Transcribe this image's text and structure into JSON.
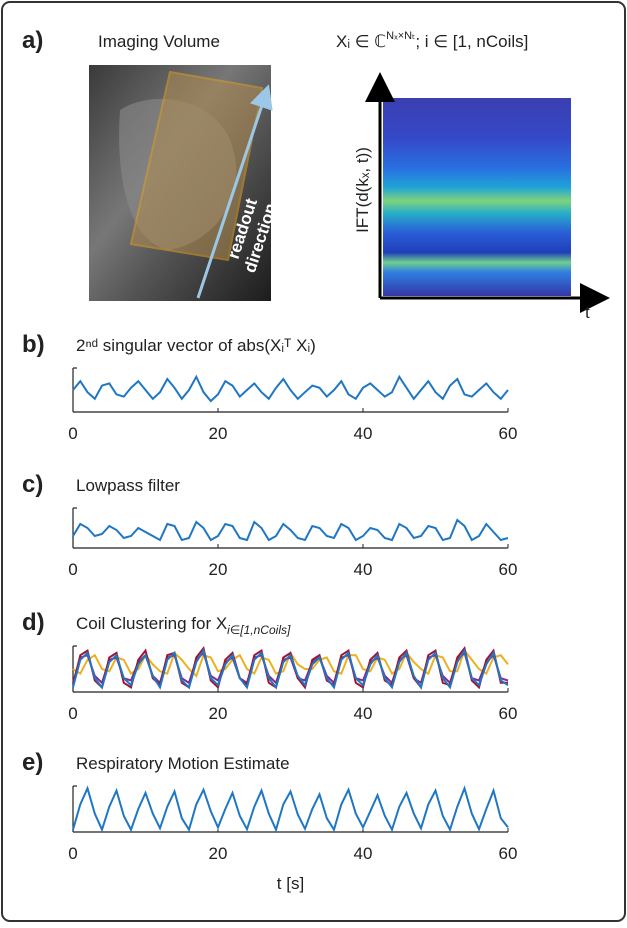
{
  "panel_a": {
    "label": "a)",
    "title": "Imaging Volume",
    "formula": [
      "Xᵢ ∈ ℂ",
      "Nₓ×Nₜ",
      "; i ∈ [1, nCoils]"
    ],
    "annotation": [
      "readout",
      "direction"
    ],
    "y_axis_label": "IFT(d(kₓ, t))",
    "x_axis_label": "t"
  },
  "chart_data": [
    {
      "type": "line",
      "label": "b)",
      "title": "2ⁿᵈ singular vector of abs(Xᵢᵀ Xᵢ)",
      "x": [
        0,
        1,
        2,
        3,
        4,
        5,
        6,
        7,
        8,
        9,
        10,
        11,
        12,
        13,
        14,
        15,
        16,
        17,
        18,
        19,
        20,
        21,
        22,
        23,
        24,
        25,
        26,
        27,
        28,
        29,
        30,
        31,
        32,
        33,
        34,
        35,
        36,
        37,
        38,
        39,
        40,
        41,
        42,
        43,
        44,
        45,
        46,
        47,
        48,
        49,
        50,
        51,
        52,
        53,
        54,
        55,
        56,
        57,
        58,
        59,
        60
      ],
      "xlim": [
        0,
        60
      ],
      "xticks": [
        0,
        20,
        40,
        60
      ],
      "ylim": [
        0,
        1
      ],
      "series": [
        {
          "color": "#1f77c4",
          "values": [
            0.5,
            0.7,
            0.45,
            0.3,
            0.6,
            0.65,
            0.4,
            0.35,
            0.55,
            0.7,
            0.5,
            0.3,
            0.45,
            0.75,
            0.55,
            0.3,
            0.5,
            0.8,
            0.45,
            0.25,
            0.4,
            0.7,
            0.6,
            0.35,
            0.5,
            0.65,
            0.45,
            0.3,
            0.55,
            0.75,
            0.5,
            0.3,
            0.45,
            0.6,
            0.55,
            0.35,
            0.5,
            0.7,
            0.4,
            0.3,
            0.55,
            0.65,
            0.5,
            0.35,
            0.45,
            0.8,
            0.55,
            0.3,
            0.5,
            0.7,
            0.45,
            0.3,
            0.6,
            0.75,
            0.4,
            0.35,
            0.5,
            0.65,
            0.45,
            0.3,
            0.5
          ]
        }
      ]
    },
    {
      "type": "line",
      "label": "c)",
      "title": "Lowpass filter",
      "x": [
        0,
        1,
        2,
        3,
        4,
        5,
        6,
        7,
        8,
        9,
        10,
        11,
        12,
        13,
        14,
        15,
        16,
        17,
        18,
        19,
        20,
        21,
        22,
        23,
        24,
        25,
        26,
        27,
        28,
        29,
        30,
        31,
        32,
        33,
        34,
        35,
        36,
        37,
        38,
        39,
        40,
        41,
        42,
        43,
        44,
        45,
        46,
        47,
        48,
        49,
        50,
        51,
        52,
        53,
        54,
        55,
        56,
        57,
        58,
        59,
        60
      ],
      "xlim": [
        0,
        60
      ],
      "xticks": [
        0,
        20,
        40,
        60
      ],
      "ylim": [
        0,
        1
      ],
      "series": [
        {
          "color": "#1f77c4",
          "values": [
            0.3,
            0.6,
            0.5,
            0.3,
            0.35,
            0.55,
            0.45,
            0.25,
            0.3,
            0.5,
            0.4,
            0.3,
            0.2,
            0.6,
            0.55,
            0.2,
            0.25,
            0.65,
            0.5,
            0.2,
            0.3,
            0.6,
            0.55,
            0.25,
            0.2,
            0.65,
            0.5,
            0.2,
            0.3,
            0.6,
            0.45,
            0.25,
            0.2,
            0.55,
            0.5,
            0.3,
            0.25,
            0.6,
            0.5,
            0.2,
            0.3,
            0.5,
            0.45,
            0.25,
            0.2,
            0.6,
            0.5,
            0.25,
            0.3,
            0.55,
            0.5,
            0.2,
            0.25,
            0.7,
            0.55,
            0.2,
            0.3,
            0.6,
            0.4,
            0.2,
            0.25
          ]
        }
      ]
    },
    {
      "type": "line",
      "label": "d)",
      "title": "Coil Clustering for X",
      "title_subscript": "i∈[1,nCoils]",
      "x": [
        0,
        1,
        2,
        3,
        4,
        5,
        6,
        7,
        8,
        9,
        10,
        11,
        12,
        13,
        14,
        15,
        16,
        17,
        18,
        19,
        20,
        21,
        22,
        23,
        24,
        25,
        26,
        27,
        28,
        29,
        30,
        31,
        32,
        33,
        34,
        35,
        36,
        37,
        38,
        39,
        40,
        41,
        42,
        43,
        44,
        45,
        46,
        47,
        48,
        49,
        50,
        51,
        52,
        53,
        54,
        55,
        56,
        57,
        58,
        59,
        60
      ],
      "xlim": [
        0,
        60
      ],
      "xticks": [
        0,
        20,
        40,
        60
      ],
      "ylim": [
        0,
        1
      ],
      "series": [
        {
          "color": "#edb120",
          "values": [
            0.5,
            0.4,
            0.7,
            0.8,
            0.5,
            0.45,
            0.75,
            0.7,
            0.4,
            0.5,
            0.8,
            0.6,
            0.45,
            0.4,
            0.85,
            0.7,
            0.5,
            0.35,
            0.8,
            0.75,
            0.45,
            0.5,
            0.7,
            0.8,
            0.5,
            0.4,
            0.75,
            0.7,
            0.4,
            0.45,
            0.85,
            0.6,
            0.5,
            0.5,
            0.7,
            0.75,
            0.45,
            0.4,
            0.8,
            0.8,
            0.5,
            0.45,
            0.75,
            0.7,
            0.4,
            0.5,
            0.85,
            0.65,
            0.5,
            0.4,
            0.8,
            0.75,
            0.45,
            0.45,
            0.9,
            0.7,
            0.5,
            0.4,
            0.75,
            0.8,
            0.6
          ]
        },
        {
          "color": "#7e2f8e",
          "values": [
            0.2,
            0.75,
            0.8,
            0.35,
            0.2,
            0.7,
            0.75,
            0.3,
            0.25,
            0.65,
            0.8,
            0.35,
            0.2,
            0.75,
            0.8,
            0.3,
            0.2,
            0.7,
            0.85,
            0.35,
            0.25,
            0.65,
            0.75,
            0.3,
            0.2,
            0.75,
            0.8,
            0.35,
            0.2,
            0.7,
            0.75,
            0.3,
            0.25,
            0.65,
            0.75,
            0.35,
            0.2,
            0.75,
            0.8,
            0.3,
            0.25,
            0.65,
            0.75,
            0.35,
            0.2,
            0.7,
            0.8,
            0.3,
            0.2,
            0.75,
            0.8,
            0.35,
            0.2,
            0.7,
            0.85,
            0.3,
            0.25,
            0.65,
            0.8,
            0.3,
            0.25
          ]
        },
        {
          "color": "#a2142f",
          "values": [
            0.15,
            0.8,
            0.9,
            0.25,
            0.1,
            0.75,
            0.85,
            0.2,
            0.1,
            0.7,
            0.9,
            0.3,
            0.15,
            0.8,
            0.85,
            0.2,
            0.1,
            0.75,
            0.95,
            0.25,
            0.1,
            0.7,
            0.85,
            0.3,
            0.15,
            0.8,
            0.9,
            0.2,
            0.1,
            0.75,
            0.85,
            0.3,
            0.1,
            0.7,
            0.8,
            0.25,
            0.15,
            0.8,
            0.9,
            0.2,
            0.1,
            0.7,
            0.85,
            0.25,
            0.15,
            0.75,
            0.9,
            0.3,
            0.1,
            0.8,
            0.9,
            0.2,
            0.15,
            0.75,
            0.95,
            0.25,
            0.1,
            0.7,
            0.9,
            0.2,
            0.2
          ]
        },
        {
          "color": "#1f77c4",
          "values": [
            0.1,
            0.7,
            0.85,
            0.3,
            0.1,
            0.65,
            0.8,
            0.3,
            0.15,
            0.6,
            0.8,
            0.35,
            0.1,
            0.7,
            0.85,
            0.25,
            0.1,
            0.65,
            0.9,
            0.3,
            0.15,
            0.6,
            0.8,
            0.3,
            0.1,
            0.7,
            0.85,
            0.3,
            0.1,
            0.65,
            0.8,
            0.35,
            0.15,
            0.6,
            0.75,
            0.3,
            0.1,
            0.7,
            0.85,
            0.3,
            0.15,
            0.6,
            0.8,
            0.3,
            0.1,
            0.65,
            0.85,
            0.35,
            0.1,
            0.7,
            0.85,
            0.3,
            0.1,
            0.65,
            0.9,
            0.3,
            0.15,
            0.6,
            0.85,
            0.25,
            0.15
          ]
        }
      ]
    },
    {
      "type": "line",
      "label": "e)",
      "title": "Respiratory Motion Estimate",
      "x_axis_label": "t [s]",
      "x": [
        0,
        1,
        2,
        3,
        4,
        5,
        6,
        7,
        8,
        9,
        10,
        11,
        12,
        13,
        14,
        15,
        16,
        17,
        18,
        19,
        20,
        21,
        22,
        23,
        24,
        25,
        26,
        27,
        28,
        29,
        30,
        31,
        32,
        33,
        34,
        35,
        36,
        37,
        38,
        39,
        40,
        41,
        42,
        43,
        44,
        45,
        46,
        47,
        48,
        49,
        50,
        51,
        52,
        53,
        54,
        55,
        56,
        57,
        58,
        59,
        60
      ],
      "xlim": [
        0,
        60
      ],
      "xticks": [
        0,
        20,
        40,
        60
      ],
      "ylim": [
        0,
        1
      ],
      "series": [
        {
          "color": "#1f77c4",
          "values": [
            0.05,
            0.6,
            0.95,
            0.4,
            0.05,
            0.55,
            0.9,
            0.35,
            0.05,
            0.5,
            0.85,
            0.4,
            0.08,
            0.55,
            0.88,
            0.3,
            0.05,
            0.6,
            0.92,
            0.45,
            0.1,
            0.5,
            0.85,
            0.35,
            0.06,
            0.55,
            0.9,
            0.4,
            0.05,
            0.6,
            0.88,
            0.38,
            0.07,
            0.5,
            0.82,
            0.3,
            0.05,
            0.6,
            0.92,
            0.4,
            0.1,
            0.45,
            0.8,
            0.35,
            0.05,
            0.55,
            0.85,
            0.4,
            0.08,
            0.6,
            0.9,
            0.35,
            0.05,
            0.55,
            0.95,
            0.4,
            0.06,
            0.5,
            0.9,
            0.3,
            0.1
          ]
        }
      ]
    }
  ]
}
